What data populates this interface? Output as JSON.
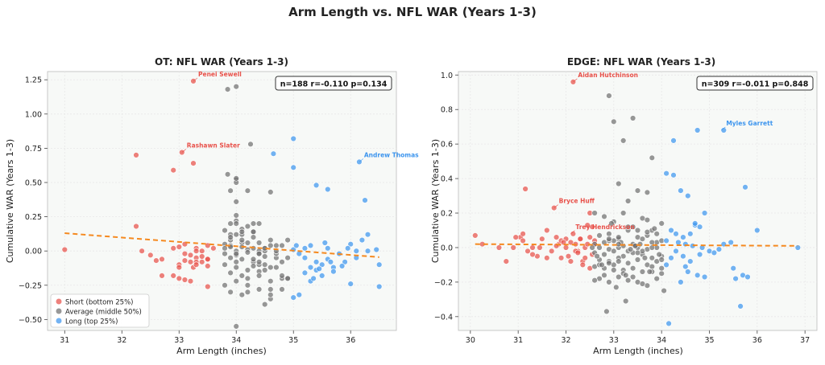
{
  "suptitle": "Arm Length vs. NFL WAR (Years 1-3)",
  "colors": {
    "short": "#e8514a",
    "average": "#707070",
    "long": "#3d95ee",
    "trend": "#f5891f",
    "grid": "#e8e8e8"
  },
  "legend": [
    {
      "key": "short",
      "label": "Short (bottom 25%)"
    },
    {
      "key": "average",
      "label": "Average (middle 50%)"
    },
    {
      "key": "long",
      "label": "Long (top 25%)"
    }
  ],
  "chart_data": [
    {
      "type": "scatter",
      "title": "OT: NFL WAR (Years 1-3)",
      "xlabel": "Arm Length (inches)",
      "ylabel": "Cumulative WAR (Years 1-3)",
      "xlim": [
        30.7,
        36.8
      ],
      "ylim": [
        -0.58,
        1.31
      ],
      "xticks": [
        31,
        32,
        33,
        34,
        35,
        36
      ],
      "xtick_labels": [
        "31",
        "32",
        "33",
        "34",
        "35",
        "36"
      ],
      "yticks": [
        -0.5,
        -0.25,
        0.0,
        0.25,
        0.5,
        0.75,
        1.0,
        1.25
      ],
      "ytick_labels": [
        "−0.50",
        "−0.25",
        "0.00",
        "0.25",
        "0.50",
        "0.75",
        "1.00",
        "1.25"
      ],
      "stats": "n=188  r=-0.110  p=0.134",
      "trend": {
        "x": [
          31.0,
          36.5
        ],
        "y": [
          0.13,
          -0.045
        ]
      },
      "legend_location": "lower-left",
      "annotations": [
        {
          "text": "Penei Sewell",
          "x": 33.25,
          "y": 1.24,
          "group": "short"
        },
        {
          "text": "Rashawn Slater",
          "x": 33.05,
          "y": 0.72,
          "group": "short"
        },
        {
          "text": "Andrew Thomas",
          "x": 36.15,
          "y": 0.65,
          "group": "long"
        }
      ],
      "series": [
        {
          "name": "Short (bottom 25%)",
          "key": "short",
          "x": [
            31.0,
            32.25,
            32.25,
            33.25,
            33.05,
            32.9,
            33.25,
            32.35,
            32.5,
            32.6,
            32.7,
            32.7,
            32.9,
            33.0,
            33.0,
            33.1,
            33.1,
            33.1,
            33.2,
            33.2,
            33.25,
            33.3,
            33.3,
            33.3,
            33.4,
            33.4,
            33.5,
            33.5,
            33.5,
            33.6,
            33.0,
            32.9,
            33.3,
            33.5,
            33.4,
            33.0,
            33.1,
            33.2,
            33.3,
            33.5
          ],
          "y": [
            0.01,
            0.7,
            0.18,
            1.24,
            0.72,
            0.59,
            0.64,
            0.0,
            -0.03,
            -0.07,
            -0.06,
            -0.18,
            -0.18,
            -0.1,
            -0.12,
            -0.21,
            -0.07,
            -0.02,
            -0.22,
            -0.03,
            -0.12,
            0.02,
            -0.05,
            -0.08,
            0.0,
            -0.04,
            -0.06,
            -0.11,
            -0.26,
            0.02,
            -0.2,
            0.02,
            0.0,
            0.04,
            -0.08,
            0.03,
            0.05,
            -0.08,
            -0.1,
            -0.06
          ]
        },
        {
          "name": "Average (middle 50%)",
          "key": "average",
          "x": [
            33.85,
            34.0,
            34.0,
            34.25,
            33.85,
            33.9,
            34.0,
            34.0,
            34.2,
            34.6,
            34.0,
            33.8,
            33.9,
            34.0,
            34.2,
            34.3,
            34.4,
            33.9,
            34.1,
            34.3,
            33.9,
            34.1,
            34.4,
            33.9,
            34.1,
            34.5,
            34.0,
            34.2,
            34.4,
            34.6,
            33.8,
            34.0,
            34.2,
            34.4,
            34.8,
            33.9,
            34.1,
            34.3,
            34.5,
            34.7,
            33.8,
            34.0,
            34.3,
            34.5,
            34.8,
            33.9,
            34.1,
            34.2,
            34.4,
            34.6,
            34.9,
            33.8,
            34.0,
            34.2,
            34.4,
            34.6,
            34.8,
            33.9,
            34.1,
            34.3,
            34.5,
            34.7,
            33.8,
            34.0,
            34.3,
            34.5,
            34.7,
            34.9,
            33.9,
            34.1,
            34.2,
            34.4,
            34.6,
            33.8,
            34.0,
            34.2,
            34.4,
            34.6,
            34.8,
            34.0,
            34.3,
            34.5,
            34.7,
            34.1,
            34.4,
            34.6,
            34.9,
            33.9,
            34.0,
            34.2,
            34.5,
            34.8,
            34.1,
            34.3,
            34.6,
            34.9,
            34.0,
            34.4,
            34.7,
            34.0
          ],
          "y": [
            1.18,
            1.2,
            0.52,
            0.78,
            0.56,
            0.44,
            0.5,
            0.26,
            0.44,
            0.43,
            0.36,
            0.15,
            0.2,
            0.22,
            0.18,
            0.2,
            0.2,
            0.12,
            0.12,
            0.14,
            0.08,
            0.06,
            0.06,
            0.04,
            0.03,
            0.02,
            0.0,
            0.01,
            0.0,
            0.04,
            -0.02,
            -0.03,
            -0.01,
            -0.02,
            0.04,
            -0.05,
            -0.06,
            -0.08,
            -0.04,
            -0.05,
            -0.1,
            -0.12,
            -0.11,
            -0.14,
            -0.08,
            -0.16,
            -0.18,
            -0.2,
            -0.15,
            -0.22,
            -0.2,
            -0.25,
            -0.22,
            -0.3,
            -0.28,
            -0.35,
            -0.2,
            0.1,
            0.08,
            0.02,
            0.0,
            -0.02,
            0.05,
            -0.08,
            -0.06,
            -0.1,
            -0.12,
            -0.05,
            -0.3,
            -0.32,
            -0.25,
            -0.18,
            -0.28,
            0.02,
            0.12,
            -0.14,
            -0.02,
            0.08,
            -0.18,
            0.2,
            0.14,
            0.02,
            0.0,
            0.16,
            -0.1,
            -0.32,
            0.08,
            0.03,
            -0.55,
            0.06,
            -0.39,
            -0.28,
            0.14,
            0.1,
            -0.12,
            -0.2,
            -0.02,
            -0.08,
            0.04,
            0.53
          ]
        },
        {
          "name": "Long (top 25%)",
          "key": "long",
          "x": [
            35.0,
            35.0,
            34.65,
            35.4,
            35.6,
            36.15,
            36.25,
            35.0,
            35.1,
            35.2,
            35.3,
            35.3,
            35.4,
            35.4,
            35.5,
            35.5,
            35.6,
            35.6,
            35.7,
            35.7,
            35.8,
            35.9,
            36.0,
            36.0,
            36.1,
            36.2,
            36.3,
            36.5,
            36.5,
            35.0,
            35.1,
            35.2,
            35.3,
            35.45,
            35.55,
            36.3,
            36.1,
            35.85,
            35.05,
            35.2,
            35.65,
            35.95,
            35.35,
            36.45
          ],
          "y": [
            0.82,
            0.61,
            0.71,
            0.48,
            0.45,
            0.65,
            0.37,
            0.01,
            -0.02,
            -0.05,
            0.04,
            -0.12,
            -0.08,
            -0.14,
            -0.1,
            -0.18,
            0.02,
            -0.06,
            -0.12,
            -0.15,
            -0.02,
            -0.08,
            0.05,
            -0.24,
            -0.05,
            0.08,
            0.0,
            -0.1,
            -0.26,
            -0.34,
            -0.32,
            -0.16,
            -0.22,
            -0.13,
            0.06,
            0.12,
            0.0,
            -0.11,
            0.04,
            0.02,
            -0.08,
            0.02,
            -0.2,
            0.01
          ]
        }
      ]
    },
    {
      "type": "scatter",
      "title": "EDGE: NFL WAR (Years 1-3)",
      "xlabel": "Arm Length (inches)",
      "ylabel": "Cumulative WAR (Years 1-3)",
      "xlim": [
        29.75,
        37.25
      ],
      "ylim": [
        -0.48,
        1.02
      ],
      "xticks": [
        30,
        31,
        32,
        33,
        34,
        35,
        36,
        37
      ],
      "xtick_labels": [
        "30",
        "31",
        "32",
        "33",
        "34",
        "35",
        "36",
        "37"
      ],
      "yticks": [
        -0.4,
        -0.2,
        0.0,
        0.2,
        0.4,
        0.6,
        0.8,
        1.0
      ],
      "ytick_labels": [
        "−0.4",
        "−0.2",
        "0.0",
        "0.2",
        "0.4",
        "0.6",
        "0.8",
        "1.0"
      ],
      "stats": "n=309  r=-0.011  p=0.848",
      "trend": {
        "x": [
          30.1,
          36.85
        ],
        "y": [
          0.02,
          0.01
        ]
      },
      "legend_location": "none",
      "annotations": [
        {
          "text": "Aidan Hutchinson",
          "x": 32.15,
          "y": 0.96,
          "group": "short"
        },
        {
          "text": "Bryce Huff",
          "x": 31.75,
          "y": 0.23,
          "group": "short"
        },
        {
          "text": "Trey Hendrickson",
          "x": 32.1,
          "y": 0.08,
          "group": "short"
        },
        {
          "text": "Myles Garrett",
          "x": 35.25,
          "y": 0.68,
          "group": "long"
        }
      ],
      "series": [
        {
          "name": "Short (bottom 25%)",
          "key": "short",
          "x": [
            30.1,
            30.25,
            30.6,
            30.75,
            30.9,
            31.05,
            31.1,
            31.15,
            31.3,
            31.4,
            31.5,
            31.6,
            31.7,
            31.8,
            31.85,
            31.9,
            32.0,
            32.05,
            32.1,
            32.15,
            32.2,
            32.25,
            32.3,
            32.35,
            32.4,
            32.45,
            32.5,
            32.5,
            32.55,
            32.6,
            31.1,
            32.15,
            31.75,
            32.0,
            32.5,
            31.3,
            31.9,
            32.2,
            32.45,
            32.3,
            31.6,
            32.1,
            32.4,
            32.55,
            31.2,
            31.45,
            30.95,
            31.8,
            32.25,
            32.6,
            32.35,
            31.95
          ],
          "y": [
            0.07,
            0.02,
            0.0,
            -0.08,
            0.0,
            0.06,
            0.04,
            0.34,
            0.0,
            -0.05,
            0.05,
            -0.06,
            -0.02,
            0.06,
            0.02,
            0.04,
            0.0,
            -0.05,
            0.03,
            0.96,
            0.02,
            -0.02,
            0.05,
            -0.08,
            0.0,
            0.13,
            0.2,
            0.06,
            -0.04,
            0.02,
            0.08,
            0.08,
            0.23,
            0.05,
            -0.12,
            -0.04,
            -0.06,
            -0.02,
            0.02,
            0.05,
            0.1,
            -0.08,
            -0.06,
            0.12,
            -0.02,
            0.0,
            0.06,
            0.01,
            -0.03,
            0.04,
            -0.1,
            0.03
          ]
        },
        {
          "name": "Average (middle 50%)",
          "key": "average",
          "x": [
            32.9,
            33.0,
            33.4,
            33.2,
            33.8,
            33.1,
            33.5,
            33.7,
            33.3,
            32.6,
            32.8,
            33.0,
            33.2,
            33.4,
            33.6,
            33.8,
            34.0,
            32.7,
            32.9,
            33.1,
            33.3,
            33.5,
            33.7,
            33.9,
            32.6,
            32.8,
            33.0,
            33.2,
            33.4,
            33.6,
            33.8,
            34.0,
            32.7,
            32.9,
            33.1,
            33.3,
            33.5,
            33.7,
            33.9,
            32.6,
            32.8,
            33.0,
            33.2,
            33.4,
            33.6,
            33.8,
            34.0,
            32.7,
            32.9,
            33.1,
            33.3,
            33.5,
            33.7,
            33.9,
            32.6,
            32.8,
            33.0,
            33.2,
            33.4,
            33.6,
            33.8,
            34.0,
            32.7,
            32.9,
            33.1,
            33.3,
            33.5,
            33.7,
            33.9,
            32.6,
            32.8,
            33.0,
            33.2,
            33.4,
            33.6,
            33.8,
            34.0,
            32.7,
            32.9,
            33.1,
            33.3,
            33.5,
            33.7,
            33.9,
            33.25,
            33.6,
            32.9,
            33.45,
            33.8,
            32.65,
            33.1,
            34.05,
            33.35,
            32.75,
            33.55,
            33.95,
            33.15,
            32.85,
            33.65,
            32.95,
            33.75,
            33.05,
            33.85,
            32.55,
            33.45,
            33.25,
            34.0,
            33.5,
            32.9,
            33.7,
            33.1
          ],
          "y": [
            0.88,
            0.73,
            0.75,
            0.62,
            0.52,
            0.37,
            0.33,
            0.32,
            0.27,
            0.2,
            0.18,
            0.15,
            0.2,
            0.12,
            0.17,
            0.1,
            0.14,
            0.07,
            0.08,
            0.05,
            0.1,
            0.06,
            0.07,
            0.03,
            0.02,
            0.03,
            0.04,
            0.01,
            0.02,
            0.05,
            0.03,
            0.04,
            0.0,
            -0.01,
            0.0,
            -0.02,
            0.0,
            -0.01,
            0.0,
            -0.03,
            -0.04,
            -0.02,
            -0.05,
            -0.03,
            -0.04,
            -0.06,
            -0.05,
            -0.07,
            -0.08,
            -0.06,
            -0.09,
            -0.07,
            -0.1,
            -0.08,
            -0.11,
            -0.12,
            -0.1,
            -0.13,
            -0.12,
            -0.14,
            -0.11,
            -0.15,
            -0.18,
            -0.2,
            -0.17,
            -0.19,
            -0.2,
            -0.22,
            -0.18,
            -0.19,
            -0.16,
            -0.13,
            -0.15,
            -0.17,
            -0.21,
            -0.14,
            -0.12,
            -0.1,
            -0.09,
            -0.08,
            0.12,
            0.1,
            0.09,
            0.08,
            -0.31,
            -0.02,
            0.04,
            0.01,
            0.0,
            -0.05,
            0.06,
            -0.25,
            -0.01,
            -0.1,
            0.02,
            -0.04,
            0.03,
            -0.37,
            -0.06,
            0.14,
            -0.14,
            -0.23,
            0.11,
            0.0,
            0.01,
            -0.16,
            -0.07,
            -0.03,
            0.05,
            0.16,
            0.02
          ]
        },
        {
          "name": "Long (top 25%)",
          "key": "long",
          "x": [
            34.25,
            34.1,
            34.25,
            34.75,
            35.3,
            35.75,
            34.4,
            34.55,
            34.9,
            34.7,
            34.8,
            34.2,
            34.3,
            34.45,
            34.6,
            34.1,
            34.35,
            34.5,
            34.65,
            34.85,
            35.0,
            35.1,
            35.3,
            35.45,
            35.55,
            35.7,
            35.8,
            36.0,
            36.85,
            34.15,
            34.4,
            34.55,
            34.75,
            34.9,
            34.2,
            34.45,
            34.6,
            34.8,
            35.5,
            35.65,
            34.3,
            34.1,
            35.2,
            34.5,
            34.7
          ],
          "y": [
            0.62,
            0.43,
            0.42,
            0.68,
            0.68,
            0.35,
            0.33,
            0.3,
            0.2,
            0.13,
            0.12,
            0.1,
            0.08,
            0.06,
            0.08,
            0.04,
            0.03,
            0.02,
            0.01,
            0.0,
            -0.02,
            -0.03,
            0.02,
            0.03,
            -0.18,
            -0.16,
            -0.17,
            0.1,
            0.0,
            -0.44,
            -0.2,
            -0.14,
            -0.16,
            -0.17,
            -0.06,
            -0.05,
            -0.08,
            -0.04,
            -0.12,
            -0.34,
            -0.02,
            -0.1,
            -0.01,
            -0.11,
            0.14
          ]
        }
      ]
    }
  ]
}
